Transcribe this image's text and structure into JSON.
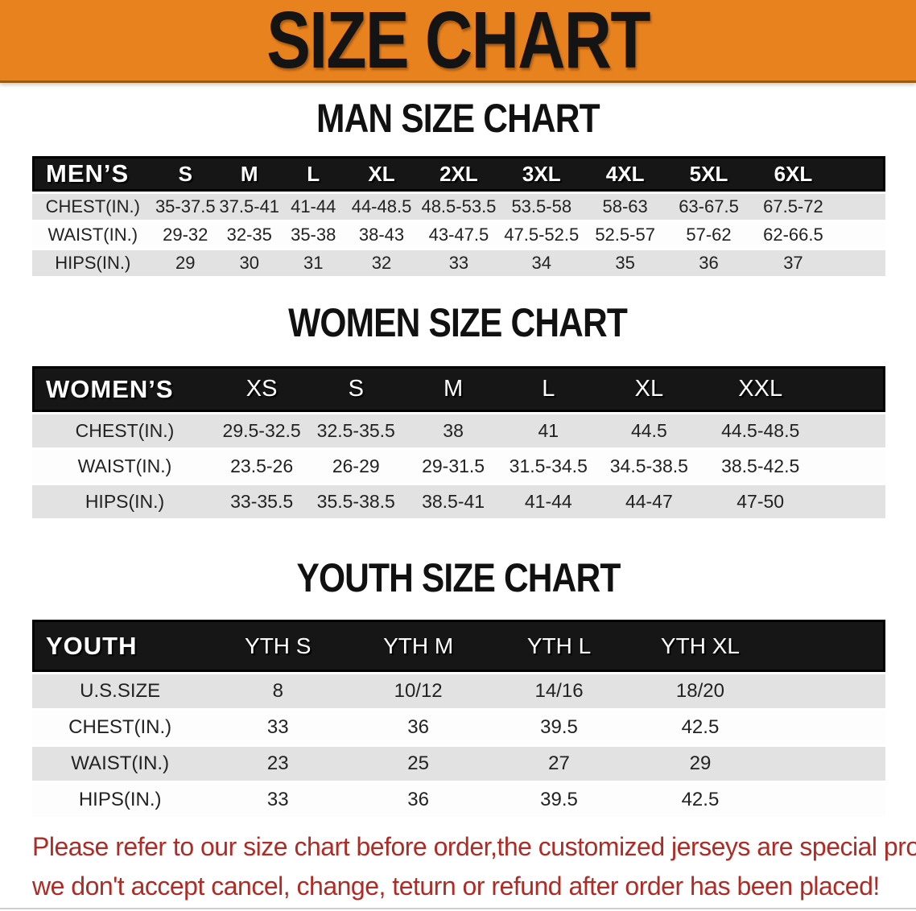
{
  "banner": {
    "title": "SIZE CHART",
    "background_color": "#E8821E",
    "text_color": "#141414"
  },
  "sections": [
    {
      "id": "men",
      "title": "MAN SIZE CHART",
      "table": {
        "header_label": "MEN’S",
        "columns": [
          "S",
          "M",
          "L",
          "XL",
          "2XL",
          "3XL",
          "4XL",
          "5XL",
          "6XL"
        ],
        "rows": [
          {
            "label": "CHEST(IN.)",
            "values": [
              "35-37.5",
              "37.5-41",
              "41-44",
              "44-48.5",
              "48.5-53.5",
              "53.5-58",
              "58-63",
              "63-67.5",
              "67.5-72"
            ]
          },
          {
            "label": "WAIST(IN.)",
            "values": [
              "29-32",
              "32-35",
              "35-38",
              "38-43",
              "43-47.5",
              "47.5-52.5",
              "52.5-57",
              "57-62",
              "62-66.5"
            ]
          },
          {
            "label": "HIPS(IN.)",
            "values": [
              "29",
              "30",
              "31",
              "32",
              "33",
              "34",
              "35",
              "36",
              "37"
            ]
          }
        ]
      }
    },
    {
      "id": "women",
      "title": "WOMEN SIZE CHART",
      "table": {
        "header_label": "WOMEN’S",
        "columns": [
          "XS",
          "S",
          "M",
          "L",
          "XL",
          "XXL"
        ],
        "rows": [
          {
            "label": "CHEST(IN.)",
            "values": [
              "29.5-32.5",
              "32.5-35.5",
              "38",
              "41",
              "44.5",
              "44.5-48.5"
            ]
          },
          {
            "label": "WAIST(IN.)",
            "values": [
              "23.5-26",
              "26-29",
              "29-31.5",
              "31.5-34.5",
              "34.5-38.5",
              "38.5-42.5"
            ]
          },
          {
            "label": "HIPS(IN.)",
            "values": [
              "33-35.5",
              "35.5-38.5",
              "38.5-41",
              "41-44",
              "44-47",
              "47-50"
            ]
          }
        ]
      }
    },
    {
      "id": "youth",
      "title": "YOUTH SIZE CHART",
      "table": {
        "header_label": "YOUTH",
        "columns": [
          "YTH S",
          "YTH M",
          "YTH L",
          "YTH XL"
        ],
        "rows": [
          {
            "label": "U.S.SIZE",
            "values": [
              "8",
              "10/12",
              "14/16",
              "18/20"
            ]
          },
          {
            "label": "CHEST(IN.)",
            "values": [
              "33",
              "36",
              "39.5",
              "42.5"
            ]
          },
          {
            "label": "WAIST(IN.)",
            "values": [
              "23",
              "25",
              "27",
              "29"
            ]
          },
          {
            "label": "HIPS(IN.)",
            "values": [
              "33",
              "36",
              "39.5",
              "42.5"
            ]
          }
        ]
      }
    }
  ],
  "disclaimer": {
    "line1": "Please refer to our size chart before order,the customized jerseys are special products,",
    "line2": "we don't accept cancel, change, teturn or refund after order has been placed!",
    "text_color": "#AE2B26"
  }
}
